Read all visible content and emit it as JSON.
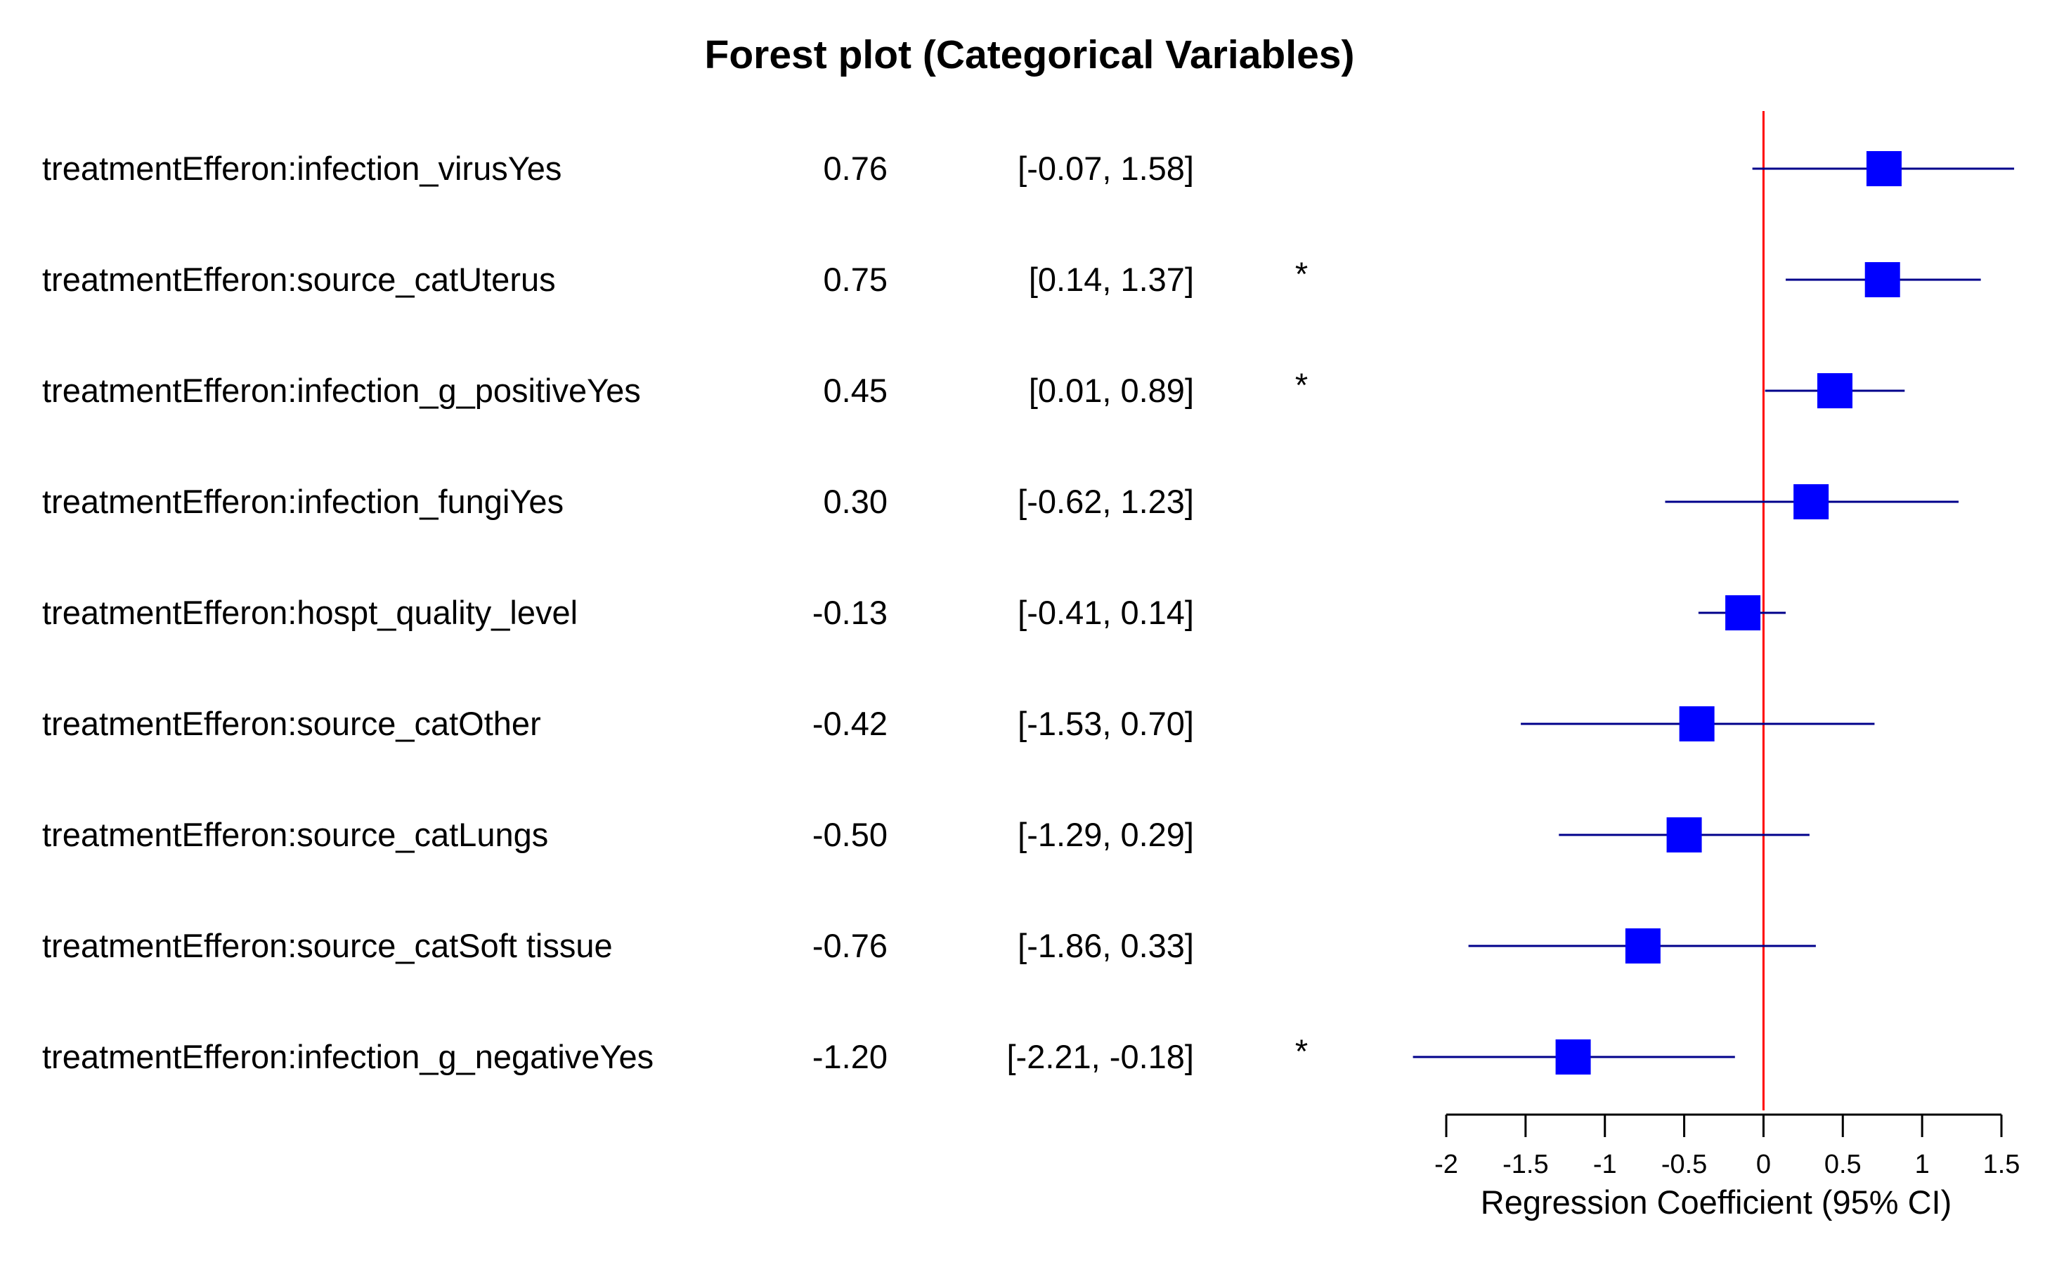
{
  "chart_data": {
    "type": "forest",
    "title": "Forest plot (Categorical Variables)",
    "xlabel": "Regression Coefficient (95% CI)",
    "xlim": [
      -2,
      1.5
    ],
    "xticks": [
      -2,
      -1.5,
      -1,
      -0.5,
      0,
      0.5,
      1,
      1.5
    ],
    "xtick_labels": [
      "-2",
      "-1.5",
      "-1",
      "-0.5",
      "0",
      "0.5",
      "1",
      "1.5"
    ],
    "reference_line": 0,
    "grid": false,
    "rows": [
      {
        "label": "treatmentEfferon:infection_virusYes",
        "estimate": 0.76,
        "estimate_label": "0.76",
        "lower": -0.07,
        "upper": 1.58,
        "ci_label": "[-0.07, 1.58]",
        "significance": ""
      },
      {
        "label": "treatmentEfferon:source_catUterus",
        "estimate": 0.75,
        "estimate_label": "0.75",
        "lower": 0.14,
        "upper": 1.37,
        "ci_label": "[0.14, 1.37]",
        "significance": "*"
      },
      {
        "label": "treatmentEfferon:infection_g_positiveYes",
        "estimate": 0.45,
        "estimate_label": "0.45",
        "lower": 0.01,
        "upper": 0.89,
        "ci_label": "[0.01, 0.89]",
        "significance": "*"
      },
      {
        "label": "treatmentEfferon:infection_fungiYes",
        "estimate": 0.3,
        "estimate_label": "0.30",
        "lower": -0.62,
        "upper": 1.23,
        "ci_label": "[-0.62, 1.23]",
        "significance": ""
      },
      {
        "label": "treatmentEfferon:hospt_quality_level",
        "estimate": -0.13,
        "estimate_label": "-0.13",
        "lower": -0.41,
        "upper": 0.14,
        "ci_label": "[-0.41, 0.14]",
        "significance": ""
      },
      {
        "label": "treatmentEfferon:source_catOther",
        "estimate": -0.42,
        "estimate_label": "-0.42",
        "lower": -1.53,
        "upper": 0.7,
        "ci_label": "[-1.53, 0.70]",
        "significance": ""
      },
      {
        "label": "treatmentEfferon:source_catLungs",
        "estimate": -0.5,
        "estimate_label": "-0.50",
        "lower": -1.29,
        "upper": 0.29,
        "ci_label": "[-1.29, 0.29]",
        "significance": ""
      },
      {
        "label": "treatmentEfferon:source_catSoft tissue",
        "estimate": -0.76,
        "estimate_label": "-0.76",
        "lower": -1.86,
        "upper": 0.33,
        "ci_label": "[-1.86, 0.33]",
        "significance": ""
      },
      {
        "label": "treatmentEfferon:infection_g_negativeYes",
        "estimate": -1.2,
        "estimate_label": "-1.20",
        "lower": -2.21,
        "upper": -0.18,
        "ci_label": "[-2.21, -0.18]",
        "significance": "*"
      }
    ],
    "colors": {
      "point": "#0000ff",
      "ci": "#00008b",
      "reference_line": "#ff0000",
      "text": "#000000",
      "axis": "#000000"
    }
  }
}
